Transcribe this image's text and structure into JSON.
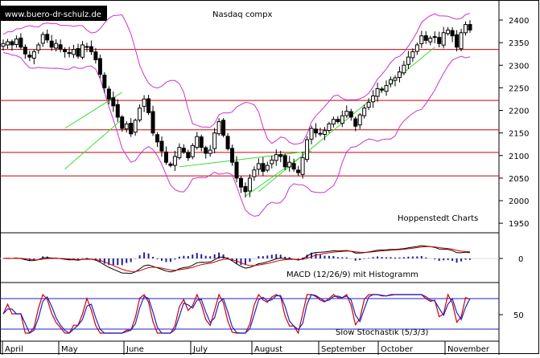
{
  "chart_data": [
    {
      "type": "candlestick",
      "title": "Nasdaq compx",
      "source_label": "www.buero-dr-schulz.de",
      "credit": "Hoppenstedt Charts",
      "x_months": [
        "April",
        "May",
        "June",
        "July",
        "August",
        "September",
        "October",
        "November"
      ],
      "y_ticks": [
        2400,
        2350,
        2300,
        2250,
        2200,
        2150,
        2100,
        2050,
        2000,
        1950
      ],
      "ylim": [
        1920,
        2420
      ],
      "horizontal_lines": [
        2335,
        2222,
        2157,
        2107,
        2055
      ],
      "close_path": [
        2348,
        2352,
        2345,
        2358,
        2340,
        2325,
        2318,
        2330,
        2345,
        2368,
        2356,
        2340,
        2348,
        2336,
        2330,
        2326,
        2335,
        2320,
        2345,
        2340,
        2330,
        2312,
        2280,
        2250,
        2225,
        2210,
        2185,
        2160,
        2170,
        2148,
        2178,
        2205,
        2225,
        2195,
        2150,
        2130,
        2110,
        2085,
        2078,
        2098,
        2118,
        2108,
        2095,
        2122,
        2142,
        2118,
        2105,
        2112,
        2150,
        2175,
        2145,
        2115,
        2085,
        2050,
        2030,
        2020,
        2050,
        2068,
        2082,
        2065,
        2078,
        2090,
        2102,
        2098,
        2075,
        2085,
        2070,
        2062,
        2095,
        2135,
        2160,
        2150,
        2148,
        2155,
        2170,
        2180,
        2175,
        2188,
        2198,
        2185,
        2165,
        2190,
        2205,
        2218,
        2232,
        2248,
        2245,
        2255,
        2268,
        2272,
        2285,
        2300,
        2318,
        2330,
        2345,
        2365,
        2355,
        2360,
        2362,
        2348,
        2372,
        2378,
        2365,
        2340,
        2372,
        2390,
        2378
      ]
    },
    {
      "type": "line",
      "label": "MACD (12/26/9) mit Histogramm",
      "y_ticks": [
        0
      ]
    },
    {
      "type": "line",
      "label": "Slow Stochastik (5/3/3)",
      "y_ticks": [
        50
      ]
    }
  ],
  "colors": {
    "upper_band": "#cc33cc",
    "lower_band": "#cc33cc",
    "trend": "#33dd33",
    "hline": "#cc0000",
    "macd_hist": "#1f1f9c",
    "stoch_fast": "#cc0000",
    "stoch_slow": "#1f1fcc",
    "stoch_ref": "#1f1fcc"
  }
}
